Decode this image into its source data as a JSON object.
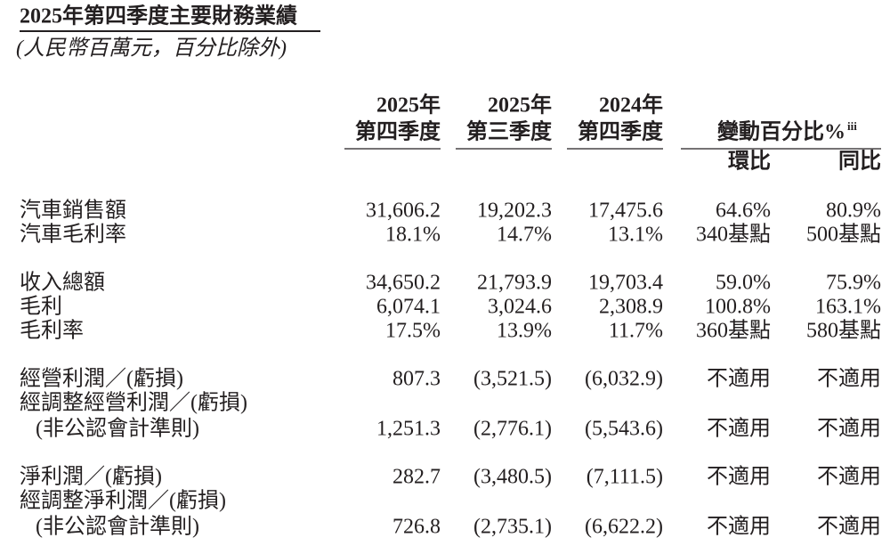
{
  "header": {
    "title": "2025年第四季度主要財務業績",
    "subtitle": "(人民幣百萬元，百分比除外)"
  },
  "table": {
    "columns": [
      [
        "2025年",
        "第四季度"
      ],
      [
        "2025年",
        "第三季度"
      ],
      [
        "2024年",
        "第四季度"
      ]
    ],
    "change_header": {
      "label": "變動百分比%",
      "note": "iii"
    },
    "change_columns": [
      "環比",
      "同比"
    ],
    "groups": [
      [
        {
          "label": [
            "汽車銷售額"
          ],
          "cells": [
            "31,606.2",
            "19,202.3",
            "17,475.6",
            "64.6%",
            "80.9%"
          ]
        },
        {
          "label": [
            "汽車毛利率"
          ],
          "cells": [
            "18.1%",
            "14.7%",
            "13.1%",
            "340基點",
            "500基點"
          ]
        }
      ],
      [
        {
          "label": [
            "收入總額"
          ],
          "cells": [
            "34,650.2",
            "21,793.9",
            "19,703.4",
            "59.0%",
            "75.9%"
          ]
        },
        {
          "label": [
            "毛利"
          ],
          "cells": [
            "6,074.1",
            "3,024.6",
            "2,308.9",
            "100.8%",
            "163.1%"
          ]
        },
        {
          "label": [
            "毛利率"
          ],
          "cells": [
            "17.5%",
            "13.9%",
            "11.7%",
            "360基點",
            "580基點"
          ]
        }
      ],
      [
        {
          "label": [
            "經營利潤／(虧損)"
          ],
          "cells": [
            "807.3",
            "(3,521.5)",
            "(6,032.9)",
            "不適用",
            "不適用"
          ]
        },
        {
          "label": [
            "經調整經營利潤／(虧損)",
            "(非公認會計準則)"
          ],
          "cells": [
            "1,251.3",
            "(2,776.1)",
            "(5,543.6)",
            "不適用",
            "不適用"
          ]
        }
      ],
      [
        {
          "label": [
            "淨利潤／(虧損)"
          ],
          "cells": [
            "282.7",
            "(3,480.5)",
            "(7,111.5)",
            "不適用",
            "不適用"
          ]
        },
        {
          "label": [
            "經調整淨利潤／(虧損)",
            "(非公認會計準則)"
          ],
          "cells": [
            "726.8",
            "(2,735.1)",
            "(6,622.2)",
            "不適用",
            "不適用"
          ]
        }
      ]
    ]
  }
}
